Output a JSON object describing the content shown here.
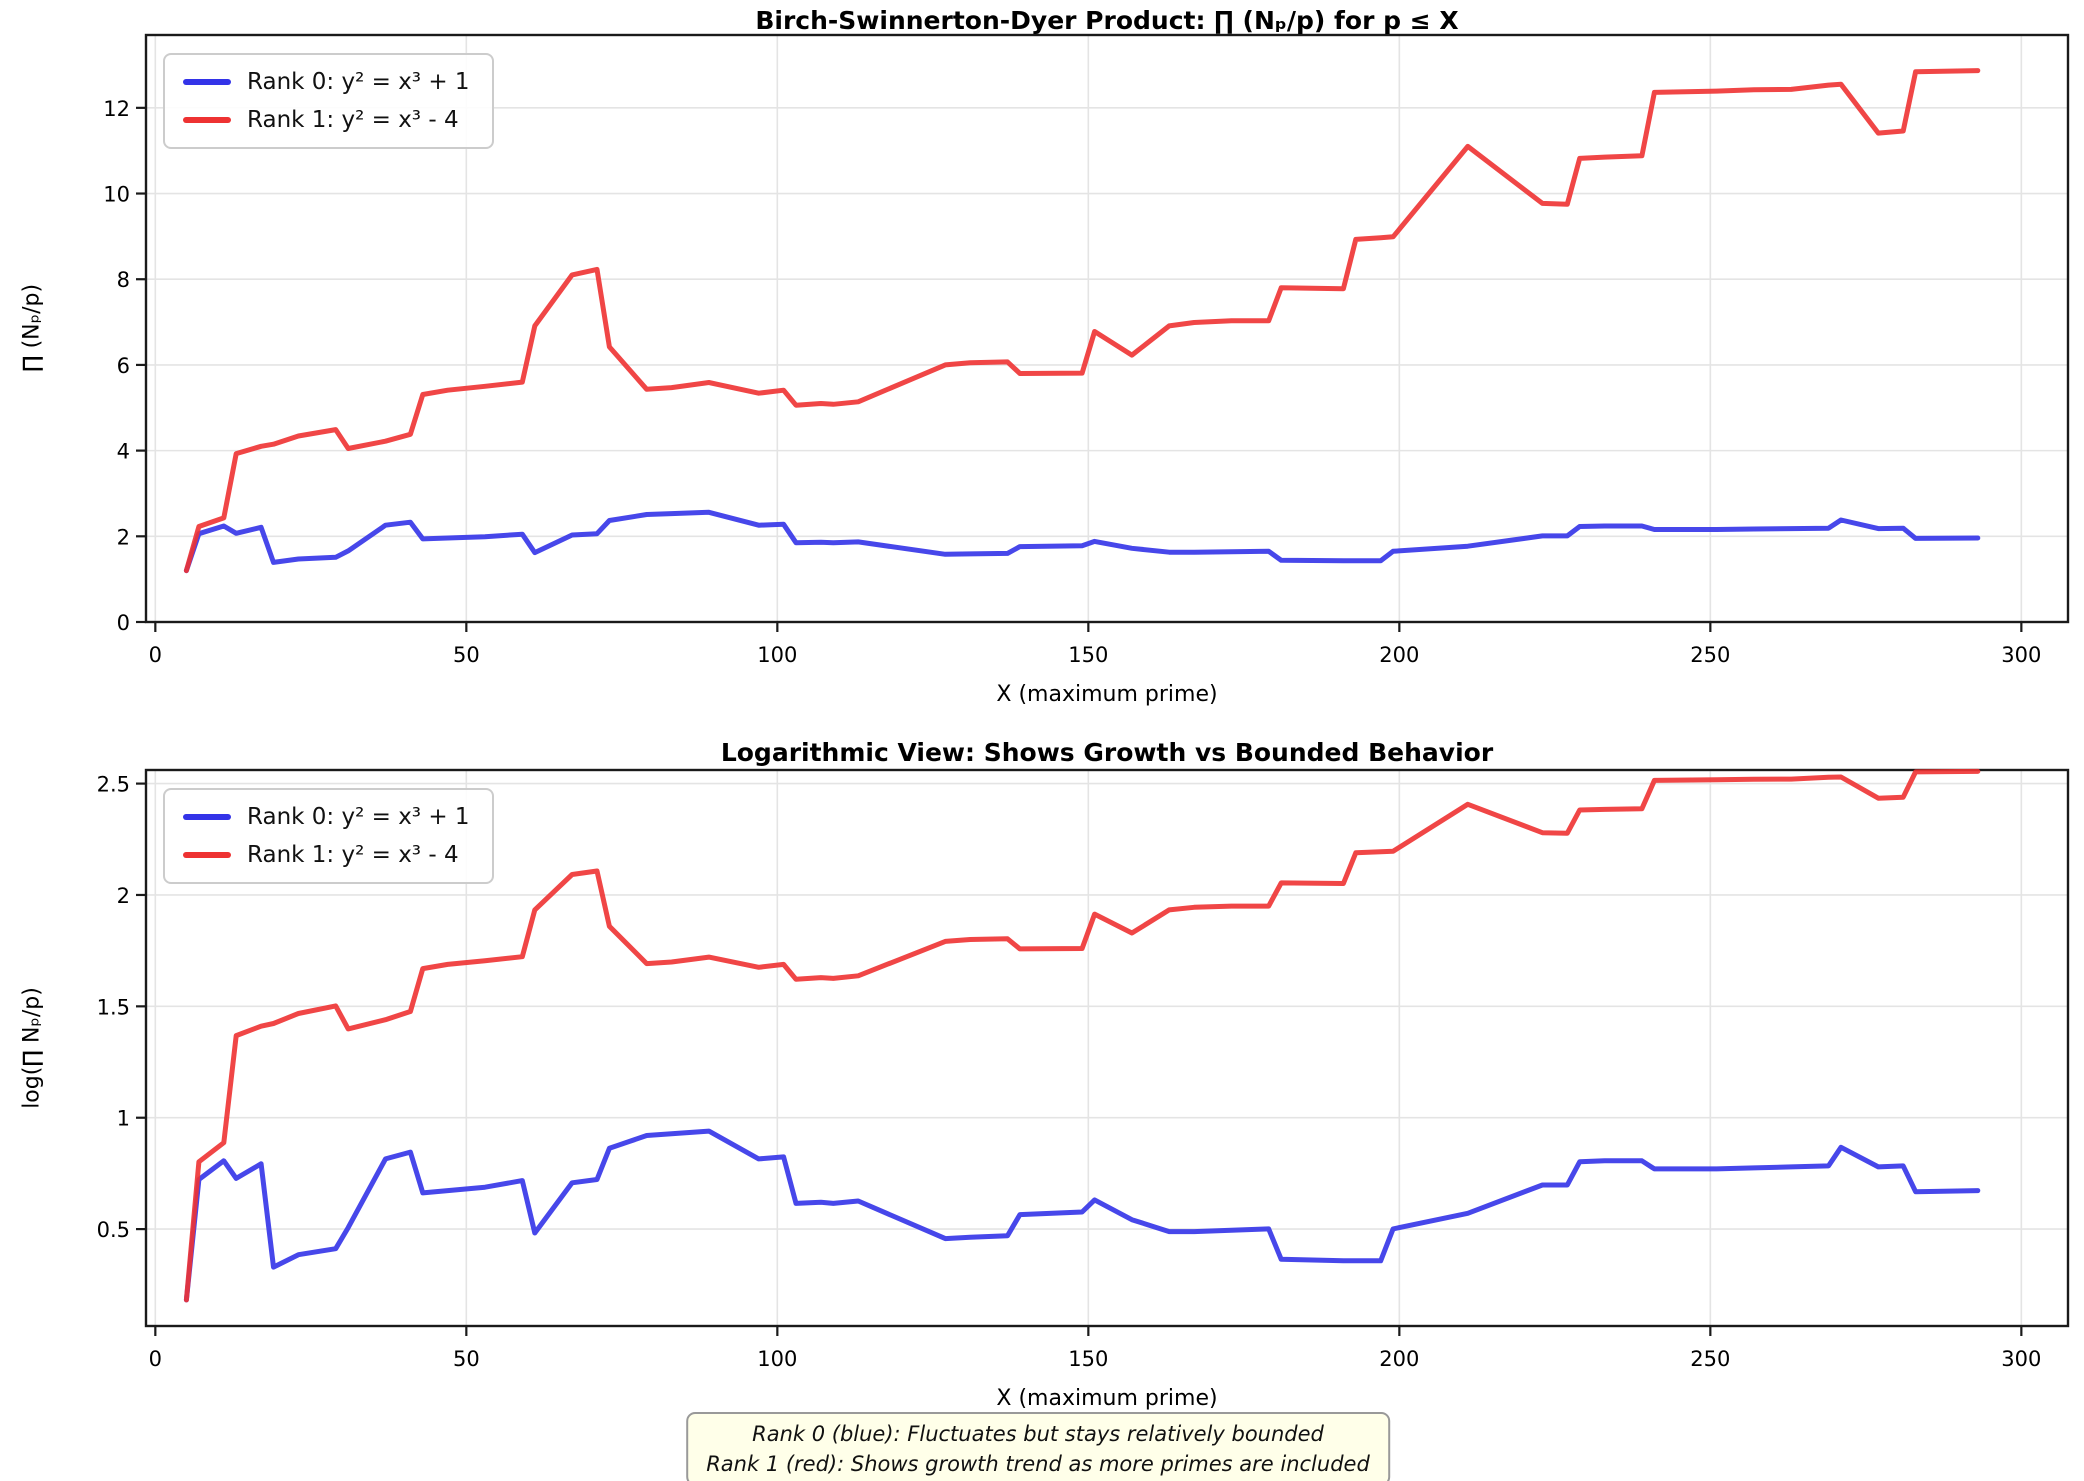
{
  "figure": {
    "background": "#ffffff"
  },
  "series": {
    "x_primes": [
      5,
      7,
      11,
      13,
      17,
      19,
      23,
      29,
      31,
      37,
      41,
      43,
      47,
      53,
      59,
      61,
      67,
      71,
      73,
      79,
      83,
      89,
      97,
      101,
      103,
      107,
      109,
      113,
      127,
      131,
      137,
      139,
      149,
      151,
      157,
      163,
      167,
      173,
      179,
      181,
      191,
      193,
      197,
      199,
      211,
      223,
      227,
      229,
      233,
      239,
      241,
      251,
      257,
      263,
      269,
      271,
      277,
      281,
      283,
      293
    ],
    "rank0": {
      "label": "Rank 0: y² = x³ + 1",
      "color": "#3333E8",
      "values": [
        1.2,
        2.06,
        2.24,
        2.07,
        2.21,
        1.39,
        1.47,
        1.51,
        1.66,
        2.26,
        2.33,
        1.94,
        1.96,
        1.99,
        2.05,
        1.62,
        2.03,
        2.06,
        2.37,
        2.51,
        2.53,
        2.56,
        2.26,
        2.28,
        1.85,
        1.86,
        1.85,
        1.87,
        1.58,
        1.59,
        1.6,
        1.76,
        1.78,
        1.88,
        1.72,
        1.63,
        1.63,
        1.64,
        1.65,
        1.44,
        1.43,
        1.43,
        1.43,
        1.65,
        1.77,
        2.01,
        2.01,
        2.23,
        2.24,
        2.24,
        2.16,
        2.16,
        2.17,
        2.18,
        2.19,
        2.38,
        2.18,
        2.19,
        1.95,
        1.96
      ]
    },
    "rank1": {
      "label": "Rank 1: y² = x³ - 4",
      "color": "#EE3232",
      "values": [
        1.2,
        2.23,
        2.43,
        3.93,
        4.1,
        4.15,
        4.34,
        4.49,
        4.05,
        4.22,
        4.38,
        5.31,
        5.41,
        5.5,
        5.6,
        6.91,
        8.1,
        8.23,
        6.42,
        5.43,
        5.47,
        5.59,
        5.34,
        5.41,
        5.06,
        5.1,
        5.08,
        5.14,
        6.0,
        6.05,
        6.07,
        5.8,
        5.81,
        6.78,
        6.23,
        6.91,
        6.99,
        7.03,
        7.03,
        7.8,
        7.78,
        8.93,
        8.97,
        8.99,
        11.1,
        9.77,
        9.75,
        10.82,
        10.85,
        10.88,
        12.36,
        12.39,
        12.42,
        12.43,
        12.53,
        12.55,
        11.41,
        11.46,
        12.84,
        12.87
      ]
    }
  },
  "chart_data": [
    {
      "type": "line",
      "title": "Birch-Swinnerton-Dyer Product: ∏ (Nₚ/p) for p ≤ X",
      "xlabel": "X (maximum prime)",
      "ylabel": "∏ (Nₚ/p)",
      "x_ticks": [
        0,
        50,
        100,
        150,
        200,
        250,
        300
      ],
      "y_ticks": [
        0,
        2,
        4,
        6,
        8,
        10,
        12
      ],
      "xlim": [
        -1.5,
        307.5
      ],
      "ylim": [
        0,
        13.7
      ],
      "y_scale": "linear",
      "grid": true,
      "legend_position": "upper-left",
      "series_refs": [
        "rank0",
        "rank1"
      ]
    },
    {
      "type": "line",
      "title": "Logarithmic View: Shows Growth vs Bounded Behavior",
      "xlabel": "X (maximum prime)",
      "ylabel": "log(∏ Nₚ/p)",
      "x_ticks": [
        0,
        50,
        100,
        150,
        200,
        250,
        300
      ],
      "y_ticks": [
        0.5,
        1.0,
        1.5,
        2.0,
        2.5
      ],
      "xlim": [
        -1.5,
        307.5
      ],
      "ylim": [
        0.065,
        2.561
      ],
      "y_scale": "ln",
      "grid": true,
      "legend_position": "upper-left",
      "series_refs": [
        "rank0",
        "rank1"
      ]
    }
  ],
  "footnote": {
    "line1": "Rank 0 (blue): Fluctuates but stays relatively bounded",
    "line2": "Rank 1 (red): Shows growth trend as more primes are included"
  }
}
